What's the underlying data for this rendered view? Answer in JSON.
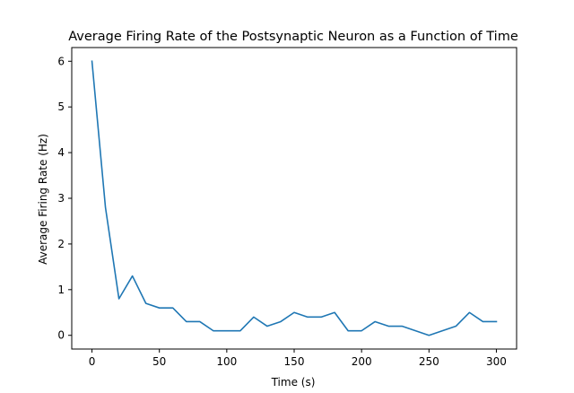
{
  "chart_data": {
    "type": "line",
    "title": "Average Firing Rate of the Postsynaptic Neuron as a Function of Time",
    "xlabel": "Time (s)",
    "ylabel": "Average Firing Rate (Hz)",
    "xlim": [
      -15,
      315
    ],
    "ylim": [
      -0.3,
      6.3
    ],
    "xticks": [
      0,
      50,
      100,
      150,
      200,
      250,
      300
    ],
    "yticks": [
      0,
      1,
      2,
      3,
      4,
      5,
      6
    ],
    "grid": false,
    "line_color": "#1f77b4",
    "series": [
      {
        "x": [
          0,
          10,
          20,
          30,
          40,
          50,
          60,
          70,
          80,
          90,
          100,
          110,
          120,
          130,
          140,
          150,
          160,
          170,
          180,
          190,
          200,
          210,
          220,
          230,
          240,
          250,
          260,
          270,
          280,
          290,
          300
        ],
        "values": [
          6.0,
          2.8,
          0.8,
          1.3,
          0.7,
          0.6,
          0.6,
          0.3,
          0.3,
          0.1,
          0.1,
          0.1,
          0.4,
          0.2,
          0.3,
          0.5,
          0.4,
          0.4,
          0.5,
          0.1,
          0.1,
          0.3,
          0.2,
          0.2,
          0.1,
          0.0,
          0.1,
          0.2,
          0.5,
          0.3,
          0.3
        ]
      }
    ]
  }
}
